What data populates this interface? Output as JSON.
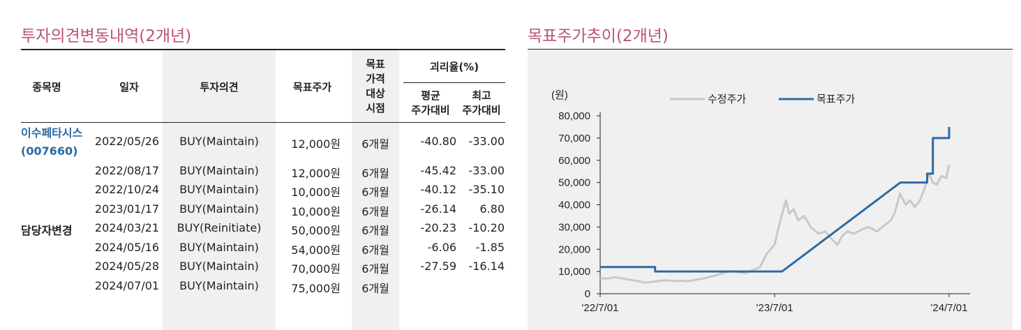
{
  "left_title": "투자의견변동내역(2개년)",
  "right_title": "목표주가추이(2개년)",
  "table": {
    "headers": {
      "name": "종목명",
      "date": "일자",
      "opinion": "투자의견",
      "target": "목표주가",
      "horizon_lines": [
        "목표",
        "가격",
        "대상",
        "시점"
      ],
      "gap": "괴리율(%)",
      "avg_lines": [
        "평균",
        "주가대비"
      ],
      "max_lines": [
        "최고",
        "주가대비"
      ]
    },
    "stock_name_lines": [
      "이수페타시스",
      "(007660)"
    ],
    "analyst_change": "담당자변경",
    "rows": [
      {
        "date": "2022/05/26",
        "opinion": "BUY(Maintain)",
        "target": "12,000원",
        "horizon": "6개월",
        "avg": "-40.80",
        "max": "-33.00"
      },
      {
        "date": "2022/08/17",
        "opinion": "BUY(Maintain)",
        "target": "12,000원",
        "horizon": "6개월",
        "avg": "-45.42",
        "max": "-33.00"
      },
      {
        "date": "2022/10/24",
        "opinion": "BUY(Maintain)",
        "target": "10,000원",
        "horizon": "6개월",
        "avg": "-40.12",
        "max": "-35.10"
      },
      {
        "date": "2023/01/17",
        "opinion": "BUY(Maintain)",
        "target": "10,000원",
        "horizon": "6개월",
        "avg": "-26.14",
        "max": "6.80"
      },
      {
        "date": "2024/03/21",
        "opinion": "BUY(Reinitiate)",
        "target": "50,000원",
        "horizon": "6개월",
        "avg": "-20.23",
        "max": "-10.20"
      },
      {
        "date": "2024/05/16",
        "opinion": "BUY(Maintain)",
        "target": "54,000원",
        "horizon": "6개월",
        "avg": "-6.06",
        "max": "-1.85"
      },
      {
        "date": "2024/05/28",
        "opinion": "BUY(Maintain)",
        "target": "70,000원",
        "horizon": "6개월",
        "avg": "-27.59",
        "max": "-16.14"
      },
      {
        "date": "2024/07/01",
        "opinion": "BUY(Maintain)",
        "target": "75,000원",
        "horizon": "6개월",
        "avg": "",
        "max": ""
      }
    ]
  },
  "chart_data": {
    "type": "line",
    "unit_label": "(원)",
    "y_ticks": [
      "80,000",
      "70,000",
      "60,000",
      "50,000",
      "40,000",
      "30,000",
      "20,000",
      "10,000",
      "0"
    ],
    "x_ticks": [
      "'22/7/01",
      "'23/7/01",
      "'24/7/01"
    ],
    "ylim": [
      0,
      80000
    ],
    "xlim": [
      "2022-07-01",
      "2024-07-01"
    ],
    "colors": {
      "price": "#c8c8c8",
      "target": "#2e6aa5"
    },
    "legend_position": "top",
    "series": [
      {
        "name": "수정주가",
        "points": [
          [
            "2022-07-01",
            7000
          ],
          [
            "2022-07-15",
            6800
          ],
          [
            "2022-08-01",
            7400
          ],
          [
            "2022-08-15",
            6900
          ],
          [
            "2022-09-01",
            6300
          ],
          [
            "2022-09-20",
            5600
          ],
          [
            "2022-10-01",
            5000
          ],
          [
            "2022-10-15",
            5200
          ],
          [
            "2022-11-01",
            5800
          ],
          [
            "2022-11-15",
            6000
          ],
          [
            "2022-12-01",
            5700
          ],
          [
            "2022-12-15",
            5900
          ],
          [
            "2023-01-01",
            5600
          ],
          [
            "2023-01-15",
            6200
          ],
          [
            "2023-02-01",
            6800
          ],
          [
            "2023-02-15",
            7500
          ],
          [
            "2023-03-01",
            8300
          ],
          [
            "2023-03-15",
            9300
          ],
          [
            "2023-04-01",
            10200
          ],
          [
            "2023-04-15",
            9800
          ],
          [
            "2023-05-01",
            9200
          ],
          [
            "2023-05-15",
            10500
          ],
          [
            "2023-06-01",
            12000
          ],
          [
            "2023-06-15",
            18000
          ],
          [
            "2023-07-01",
            22000
          ],
          [
            "2023-07-10",
            30000
          ],
          [
            "2023-07-20",
            38000
          ],
          [
            "2023-07-25",
            42000
          ],
          [
            "2023-08-01",
            36000
          ],
          [
            "2023-08-10",
            38000
          ],
          [
            "2023-08-20",
            33000
          ],
          [
            "2023-09-01",
            35000
          ],
          [
            "2023-09-15",
            30000
          ],
          [
            "2023-10-01",
            27000
          ],
          [
            "2023-10-15",
            28000
          ],
          [
            "2023-11-01",
            24000
          ],
          [
            "2023-11-10",
            22000
          ],
          [
            "2023-11-20",
            26000
          ],
          [
            "2023-12-01",
            28000
          ],
          [
            "2023-12-15",
            27000
          ],
          [
            "2024-01-01",
            29000
          ],
          [
            "2024-01-15",
            30000
          ],
          [
            "2024-02-01",
            28000
          ],
          [
            "2024-02-15",
            30500
          ],
          [
            "2024-03-01",
            33000
          ],
          [
            "2024-03-10",
            37000
          ],
          [
            "2024-03-20",
            45000
          ],
          [
            "2024-04-01",
            40000
          ],
          [
            "2024-04-10",
            42000
          ],
          [
            "2024-04-20",
            39000
          ],
          [
            "2024-05-01",
            42000
          ],
          [
            "2024-05-10",
            47000
          ],
          [
            "2024-05-20",
            54000
          ],
          [
            "2024-05-28",
            50000
          ],
          [
            "2024-06-05",
            49000
          ],
          [
            "2024-06-15",
            53000
          ],
          [
            "2024-06-25",
            52000
          ],
          [
            "2024-07-01",
            58000
          ]
        ]
      },
      {
        "name": "목표주가",
        "points": [
          [
            "2022-07-01",
            12000
          ],
          [
            "2022-10-24",
            12000
          ],
          [
            "2022-10-24",
            10000
          ],
          [
            "2023-07-17",
            10000
          ],
          [
            "2024-03-21",
            50000
          ],
          [
            "2024-05-16",
            50000
          ],
          [
            "2024-05-16",
            54000
          ],
          [
            "2024-05-28",
            54000
          ],
          [
            "2024-05-28",
            70000
          ],
          [
            "2024-07-01",
            70000
          ],
          [
            "2024-07-01",
            75000
          ]
        ]
      }
    ]
  }
}
